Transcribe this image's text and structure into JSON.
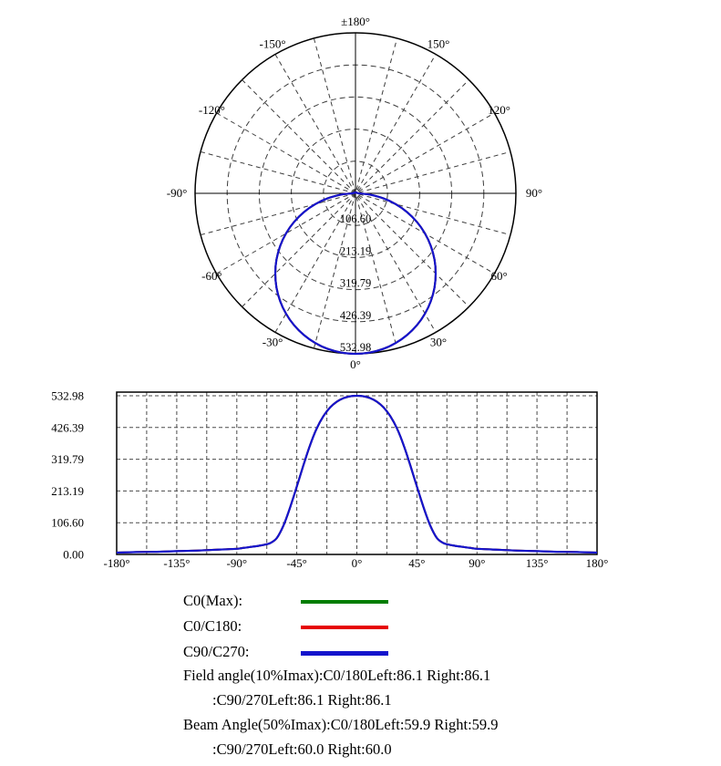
{
  "chart_data": [
    {
      "type": "polar",
      "name": "polar-luminous-intensity-distribution",
      "rmax": 532.98,
      "grid": {
        "rings": 5,
        "spoke_step_deg": 15
      },
      "angle_ticks": [
        {
          "angle": 180,
          "label": "±180°"
        },
        {
          "angle": -150,
          "label": "-150°"
        },
        {
          "angle": 150,
          "label": "150°"
        },
        {
          "angle": -120,
          "label": "-120°"
        },
        {
          "angle": 120,
          "label": "120°"
        },
        {
          "angle": -90,
          "label": "-90°"
        },
        {
          "angle": 90,
          "label": "90°"
        },
        {
          "angle": -60,
          "label": "-60°"
        },
        {
          "angle": 60,
          "label": "60°"
        },
        {
          "angle": -30,
          "label": "-30°"
        },
        {
          "angle": 30,
          "label": "30°"
        },
        {
          "angle": 0,
          "label": "0°"
        }
      ],
      "radial_tick_values": [
        106.6,
        213.19,
        319.79,
        426.39,
        532.98
      ],
      "radial_tick_labels": [
        "106.60",
        "213.19",
        "319.79",
        "426.39",
        "532.98"
      ],
      "symmetric": true,
      "angles_deg": [
        0,
        5,
        10,
        15,
        20,
        25,
        30,
        35,
        40,
        45,
        50,
        55,
        60,
        65,
        70,
        75,
        80,
        85,
        90,
        105,
        120,
        135,
        150,
        165,
        180
      ],
      "values": [
        532.98,
        530.95,
        524.88,
        514.82,
        500.85,
        483.08,
        461.58,
        436.6,
        408.29,
        376.87,
        342.61,
        305.72,
        266.49,
        225.2,
        182.3,
        137.93,
        92.56,
        46.45,
        10,
        6,
        5,
        4,
        3,
        2,
        2
      ],
      "series": [
        {
          "name": "C0(Max)",
          "color": "#007d00"
        },
        {
          "name": "C0/C180",
          "color": "#e60000"
        },
        {
          "name": "C90/C270",
          "color": "#1414cc"
        }
      ]
    },
    {
      "type": "line",
      "name": "cartesian-luminous-intensity",
      "xlim": [
        -180,
        180
      ],
      "ylim": [
        0,
        545
      ],
      "grid": {
        "x_step_deg": 22.5
      },
      "x_tick_values": [
        -180,
        -135,
        -90,
        -45,
        0,
        45,
        90,
        135,
        180
      ],
      "x_tick_labels": [
        "-180°",
        "-135°",
        "-90°",
        "-45°",
        "0°",
        "45°",
        "90°",
        "135°",
        "180°"
      ],
      "y_tick_values": [
        532.98,
        426.39,
        319.79,
        213.19,
        106.6,
        0
      ],
      "y_tick_labels": [
        "532.98",
        "426.39",
        "319.79",
        "213.19",
        "106.60",
        "0.00"
      ],
      "symmetric": true,
      "angles_deg": [
        0,
        5,
        10,
        15,
        20,
        25,
        30,
        35,
        40,
        45,
        50,
        55,
        60,
        65,
        70,
        75,
        80,
        85,
        90,
        105,
        120,
        135,
        150,
        165,
        180
      ],
      "values": [
        532.98,
        531,
        525,
        513,
        494,
        465,
        424,
        368,
        300,
        228,
        158,
        97,
        55,
        38,
        32,
        28,
        25,
        22,
        19,
        16,
        13,
        11,
        9,
        8,
        6
      ],
      "series": [
        {
          "name": "C0(Max)",
          "color": "#007d00"
        },
        {
          "name": "C0/C180",
          "color": "#e60000"
        },
        {
          "name": "C90/C270",
          "color": "#1414cc"
        }
      ]
    }
  ],
  "legend": {
    "items": [
      {
        "label": "C0(Max):",
        "color": "#007d00"
      },
      {
        "label": "C0/C180:",
        "color": "#e60000"
      },
      {
        "label": "C90/C270:",
        "color": "#1414cc"
      }
    ],
    "notes": [
      {
        "text": "Field angle(10%Imax):C0/180Left:86.1 Right:86.1"
      },
      {
        "text": ":C90/270Left:86.1 Right:86.1"
      },
      {
        "text": "Beam Angle(50%Imax):C0/180Left:59.9 Right:59.9"
      },
      {
        "text": ":C90/270Left:60.0 Right:60.0"
      }
    ]
  }
}
